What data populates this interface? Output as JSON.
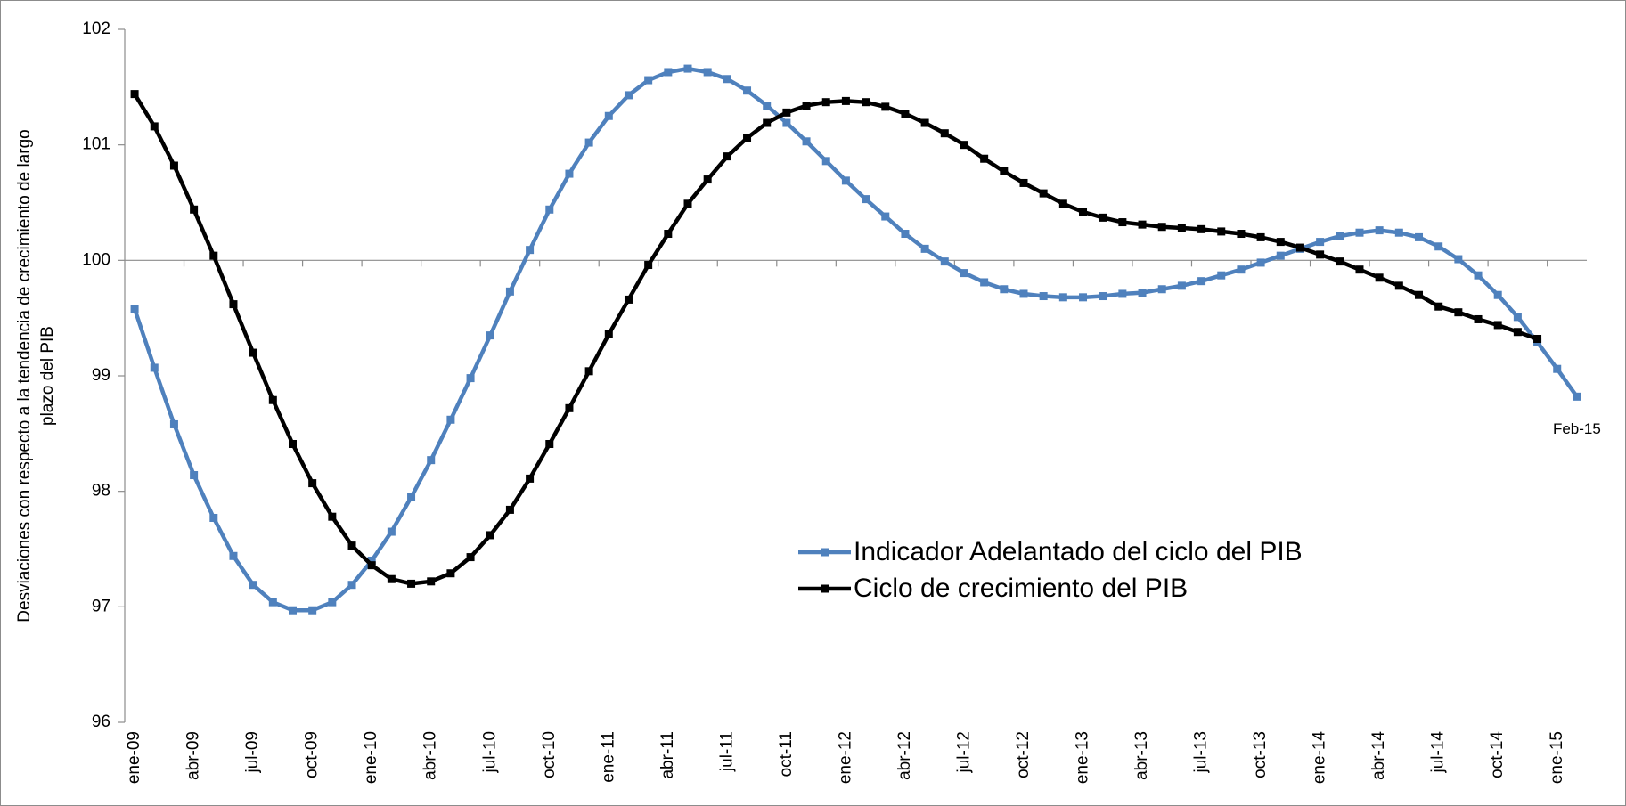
{
  "chart_data": {
    "type": "line",
    "ylabel": [
      "Desviaciones con respecto a la tendencia de crecimiento de largo",
      "plazo del PIB"
    ],
    "categories": [
      "ene-09",
      null,
      null,
      "abr-09",
      null,
      null,
      "jul-09",
      null,
      null,
      "oct-09",
      null,
      null,
      "ene-10",
      null,
      null,
      "abr-10",
      null,
      null,
      "jul-10",
      null,
      null,
      "oct-10",
      null,
      null,
      "ene-11",
      null,
      null,
      "abr-11",
      null,
      null,
      "jul-11",
      null,
      null,
      "oct-11",
      null,
      null,
      "ene-12",
      null,
      null,
      "abr-12",
      null,
      null,
      "jul-12",
      null,
      null,
      "oct-12",
      null,
      null,
      "ene-13",
      null,
      null,
      "abr-13",
      null,
      null,
      "jul-13",
      null,
      null,
      "oct-13",
      null,
      null,
      "ene-14",
      null,
      null,
      "abr-14",
      null,
      null,
      "jul-14",
      null,
      null,
      "oct-14",
      null,
      null,
      "ene-15",
      null
    ],
    "series": [
      {
        "name": "Indicador Adelantado del ciclo del PIB",
        "color": "#4f81bd",
        "values": [
          99.58,
          99.07,
          98.58,
          98.14,
          97.77,
          97.44,
          97.19,
          97.04,
          96.97,
          96.97,
          97.04,
          97.19,
          97.4,
          97.65,
          97.95,
          98.27,
          98.62,
          98.98,
          99.35,
          99.73,
          100.09,
          100.44,
          100.75,
          101.02,
          101.25,
          101.43,
          101.56,
          101.63,
          101.66,
          101.63,
          101.57,
          101.47,
          101.34,
          101.19,
          101.03,
          100.86,
          100.69,
          100.53,
          100.38,
          100.23,
          100.1,
          99.99,
          99.89,
          99.81,
          99.75,
          99.71,
          99.69,
          99.68,
          99.68,
          99.69,
          99.71,
          99.72,
          99.75,
          99.78,
          99.82,
          99.87,
          99.92,
          99.98,
          100.04,
          100.1,
          100.16,
          100.21,
          100.24,
          100.26,
          100.24,
          100.2,
          100.12,
          100.01,
          99.87,
          99.7,
          99.51,
          99.29,
          99.06,
          98.82
        ]
      },
      {
        "name": "Ciclo de crecimiento del PIB",
        "color": "#000000",
        "values": [
          101.44,
          101.16,
          100.82,
          100.44,
          100.04,
          99.62,
          99.2,
          98.79,
          98.41,
          98.07,
          97.78,
          97.53,
          97.36,
          97.24,
          97.2,
          97.22,
          97.29,
          97.43,
          97.62,
          97.84,
          98.11,
          98.41,
          98.72,
          99.04,
          99.36,
          99.66,
          99.96,
          100.23,
          100.49,
          100.7,
          100.9,
          101.06,
          101.19,
          101.28,
          101.34,
          101.37,
          101.38,
          101.37,
          101.33,
          101.27,
          101.19,
          101.1,
          101.0,
          100.88,
          100.77,
          100.67,
          100.58,
          100.49,
          100.42,
          100.37,
          100.33,
          100.31,
          100.29,
          100.28,
          100.27,
          100.25,
          100.23,
          100.2,
          100.16,
          100.11,
          100.05,
          99.99,
          99.92,
          99.85,
          99.78,
          99.7,
          99.6,
          99.55,
          99.49,
          99.44,
          99.38,
          99.32,
          null,
          null
        ]
      }
    ],
    "annotation": "Feb-15",
    "ylim": [
      96,
      102
    ],
    "yticks": [
      96,
      97,
      98,
      99,
      100,
      101,
      102
    ],
    "baseline": 100
  }
}
